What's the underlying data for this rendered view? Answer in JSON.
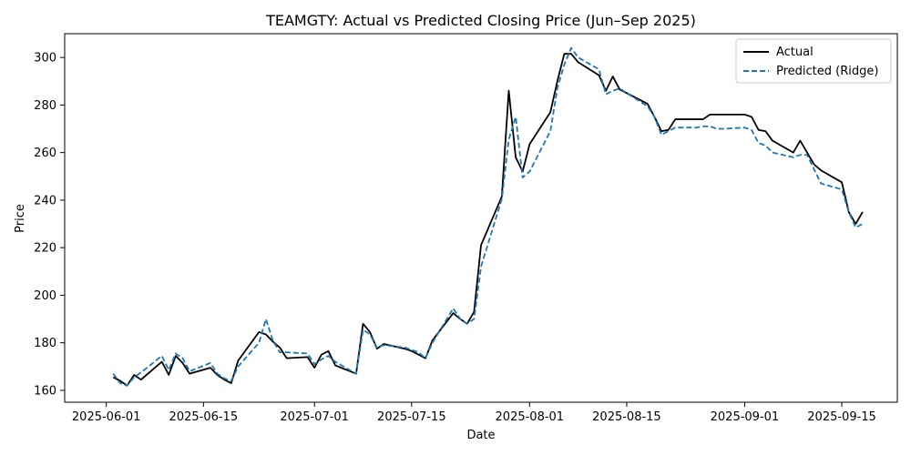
{
  "chart_data": {
    "type": "line",
    "title": "TEAMGTY: Actual vs Predicted Closing Price (Jun–Sep 2025)",
    "xlabel": "Date",
    "ylabel": "Price",
    "xlim": [
      "2025-05-26",
      "2025-09-23"
    ],
    "ylim": [
      155,
      310
    ],
    "x_ticks": [
      "2025-06-01",
      "2025-06-15",
      "2025-07-01",
      "2025-07-15",
      "2025-08-01",
      "2025-08-15",
      "2025-09-01",
      "2025-09-15"
    ],
    "y_ticks": [
      160,
      180,
      200,
      220,
      240,
      260,
      280,
      300
    ],
    "grid": false,
    "legend": {
      "position": "top-right",
      "entries": [
        "Actual",
        "Predicted (Ridge)"
      ]
    },
    "colors": {
      "actual": "#000000",
      "predicted": "#1f77b4"
    },
    "series": [
      {
        "name": "Actual",
        "style": "solid",
        "x": [
          "2025-06-02",
          "2025-06-03",
          "2025-06-04",
          "2025-06-05",
          "2025-06-06",
          "2025-06-09",
          "2025-06-10",
          "2025-06-11",
          "2025-06-12",
          "2025-06-13",
          "2025-06-16",
          "2025-06-17",
          "2025-06-18",
          "2025-06-19",
          "2025-06-20",
          "2025-06-23",
          "2025-06-24",
          "2025-06-25",
          "2025-06-26",
          "2025-06-27",
          "2025-06-30",
          "2025-07-01",
          "2025-07-02",
          "2025-07-03",
          "2025-07-04",
          "2025-07-07",
          "2025-07-08",
          "2025-07-09",
          "2025-07-10",
          "2025-07-11",
          "2025-07-14",
          "2025-07-15",
          "2025-07-16",
          "2025-07-17",
          "2025-07-18",
          "2025-07-21",
          "2025-07-22",
          "2025-07-23",
          "2025-07-24",
          "2025-07-25",
          "2025-07-28",
          "2025-07-29",
          "2025-07-30",
          "2025-07-31",
          "2025-08-01",
          "2025-08-04",
          "2025-08-05",
          "2025-08-06",
          "2025-08-07",
          "2025-08-08",
          "2025-08-11",
          "2025-08-12",
          "2025-08-13",
          "2025-08-14",
          "2025-08-15",
          "2025-08-18",
          "2025-08-19",
          "2025-08-20",
          "2025-08-21",
          "2025-08-22",
          "2025-08-25",
          "2025-08-26",
          "2025-08-27",
          "2025-08-28",
          "2025-08-29",
          "2025-09-01",
          "2025-09-02",
          "2025-09-03",
          "2025-09-04",
          "2025-09-05",
          "2025-09-08",
          "2025-09-09",
          "2025-09-10",
          "2025-09-11",
          "2025-09-12",
          "2025-09-15",
          "2025-09-16",
          "2025-09-17",
          "2025-09-18"
        ],
        "values": [
          165.5,
          164.0,
          162.0,
          166.5,
          164.5,
          172.0,
          166.5,
          174.5,
          171.5,
          167.0,
          169.5,
          166.5,
          164.5,
          163.0,
          172.5,
          184.5,
          183.5,
          180.5,
          178.0,
          173.5,
          174.0,
          169.5,
          175.0,
          176.5,
          170.5,
          167.0,
          188.0,
          184.5,
          177.5,
          179.5,
          177.5,
          176.5,
          175.0,
          173.5,
          181.0,
          192.5,
          190.0,
          188.0,
          193.0,
          221.0,
          241.5,
          286.0,
          258.0,
          252.0,
          263.5,
          277.0,
          290.0,
          301.5,
          301.5,
          298.0,
          292.5,
          286.0,
          292.0,
          286.5,
          285.0,
          280.5,
          275.0,
          269.0,
          269.5,
          274.0,
          274.0,
          274.0,
          276.0,
          276.0,
          276.0,
          276.0,
          275.0,
          269.5,
          269.0,
          265.0,
          260.0,
          265.0,
          260.0,
          255.0,
          252.5,
          247.5,
          235.0,
          230.0,
          235.0
        ]
      },
      {
        "name": "Predicted (Ridge)",
        "style": "dashed",
        "x": [
          "2025-06-02",
          "2025-06-03",
          "2025-06-04",
          "2025-06-05",
          "2025-06-06",
          "2025-06-09",
          "2025-06-10",
          "2025-06-11",
          "2025-06-12",
          "2025-06-13",
          "2025-06-16",
          "2025-06-17",
          "2025-06-18",
          "2025-06-19",
          "2025-06-20",
          "2025-06-23",
          "2025-06-24",
          "2025-06-25",
          "2025-06-26",
          "2025-06-27",
          "2025-06-30",
          "2025-07-01",
          "2025-07-02",
          "2025-07-03",
          "2025-07-04",
          "2025-07-07",
          "2025-07-08",
          "2025-07-09",
          "2025-07-10",
          "2025-07-11",
          "2025-07-14",
          "2025-07-15",
          "2025-07-16",
          "2025-07-17",
          "2025-07-18",
          "2025-07-21",
          "2025-07-22",
          "2025-07-23",
          "2025-07-24",
          "2025-07-25",
          "2025-07-28",
          "2025-07-29",
          "2025-07-30",
          "2025-07-31",
          "2025-08-01",
          "2025-08-04",
          "2025-08-05",
          "2025-08-06",
          "2025-08-07",
          "2025-08-08",
          "2025-08-11",
          "2025-08-12",
          "2025-08-13",
          "2025-08-14",
          "2025-08-15",
          "2025-08-18",
          "2025-08-19",
          "2025-08-20",
          "2025-08-21",
          "2025-08-22",
          "2025-08-25",
          "2025-08-26",
          "2025-08-27",
          "2025-08-28",
          "2025-08-29",
          "2025-09-01",
          "2025-09-02",
          "2025-09-03",
          "2025-09-04",
          "2025-09-05",
          "2025-09-08",
          "2025-09-09",
          "2025-09-10",
          "2025-09-11",
          "2025-09-12",
          "2025-09-15",
          "2025-09-16",
          "2025-09-17",
          "2025-09-18"
        ],
        "values": [
          167.0,
          163.0,
          162.0,
          165.5,
          167.5,
          174.5,
          168.5,
          175.5,
          173.5,
          168.0,
          171.5,
          167.0,
          165.0,
          164.0,
          170.0,
          180.0,
          190.0,
          181.0,
          176.0,
          176.0,
          175.5,
          171.0,
          173.0,
          174.5,
          172.0,
          167.0,
          185.5,
          183.5,
          178.0,
          179.0,
          178.0,
          177.0,
          176.0,
          173.5,
          180.0,
          194.5,
          190.0,
          188.0,
          190.0,
          212.0,
          240.5,
          265.5,
          275.0,
          249.5,
          252.0,
          269.0,
          287.0,
          297.0,
          304.0,
          300.0,
          295.0,
          284.5,
          286.0,
          287.0,
          285.0,
          279.5,
          275.0,
          267.5,
          269.0,
          270.5,
          270.5,
          271.0,
          271.0,
          270.0,
          270.0,
          270.5,
          269.5,
          264.0,
          263.0,
          260.0,
          258.0,
          259.0,
          259.0,
          253.0,
          247.0,
          244.5,
          235.0,
          228.5,
          230.0
        ]
      }
    ]
  }
}
